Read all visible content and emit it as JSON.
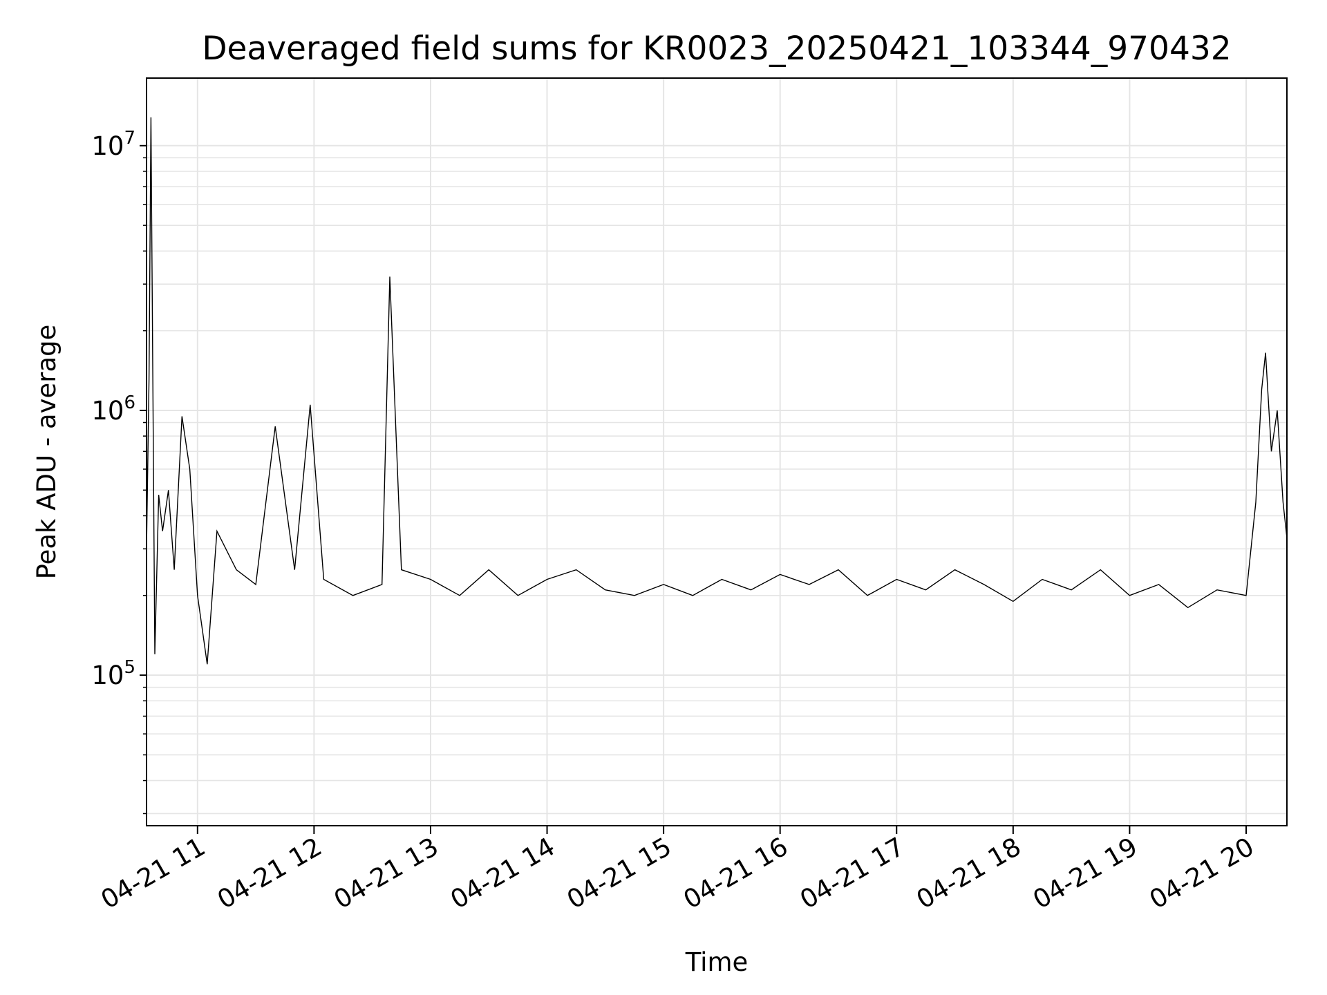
{
  "chart_data": {
    "type": "line",
    "title": "Deaveraged field sums for KR0023_20250421_103344_970432",
    "xlabel": "Time",
    "ylabel": "Peak ADU - average",
    "yscale": "log",
    "ylim": [
      27000,
      18000000
    ],
    "xlim": [
      "2025-04-21 10:33:44",
      "2025-04-21 20:21:00"
    ],
    "grid": true,
    "line_color": "#000000",
    "grid_color": "#e5e5e5",
    "x_ticks": [
      {
        "label": "04-21 11",
        "value": "2025-04-21 11:00"
      },
      {
        "label": "04-21 12",
        "value": "2025-04-21 12:00"
      },
      {
        "label": "04-21 13",
        "value": "2025-04-21 13:00"
      },
      {
        "label": "04-21 14",
        "value": "2025-04-21 14:00"
      },
      {
        "label": "04-21 15",
        "value": "2025-04-21 15:00"
      },
      {
        "label": "04-21 16",
        "value": "2025-04-21 16:00"
      },
      {
        "label": "04-21 17",
        "value": "2025-04-21 17:00"
      },
      {
        "label": "04-21 18",
        "value": "2025-04-21 18:00"
      },
      {
        "label": "04-21 19",
        "value": "2025-04-21 19:00"
      },
      {
        "label": "04-21 20",
        "value": "2025-04-21 20:00"
      }
    ],
    "y_ticks": [
      {
        "base": "10",
        "exp": "5",
        "value": 100000
      },
      {
        "base": "10",
        "exp": "6",
        "value": 1000000
      },
      {
        "base": "10",
        "exp": "7",
        "value": 10000000
      }
    ],
    "series": [
      {
        "x": [
          "2025-04-21 10:33:44",
          "2025-04-21 10:35",
          "2025-04-21 10:36",
          "2025-04-21 10:38",
          "2025-04-21 10:40",
          "2025-04-21 10:42",
          "2025-04-21 10:45",
          "2025-04-21 10:48",
          "2025-04-21 10:52",
          "2025-04-21 10:56",
          "2025-04-21 11:00",
          "2025-04-21 11:05",
          "2025-04-21 11:10",
          "2025-04-21 11:20",
          "2025-04-21 11:30",
          "2025-04-21 11:40",
          "2025-04-21 11:50",
          "2025-04-21 11:58",
          "2025-04-21 12:05",
          "2025-04-21 12:20",
          "2025-04-21 12:35",
          "2025-04-21 12:39",
          "2025-04-21 12:45",
          "2025-04-21 13:00",
          "2025-04-21 13:15",
          "2025-04-21 13:30",
          "2025-04-21 13:45",
          "2025-04-21 14:00",
          "2025-04-21 14:15",
          "2025-04-21 14:30",
          "2025-04-21 14:45",
          "2025-04-21 15:00",
          "2025-04-21 15:15",
          "2025-04-21 15:30",
          "2025-04-21 15:45",
          "2025-04-21 16:00",
          "2025-04-21 16:15",
          "2025-04-21 16:30",
          "2025-04-21 16:45",
          "2025-04-21 17:00",
          "2025-04-21 17:15",
          "2025-04-21 17:30",
          "2025-04-21 17:45",
          "2025-04-21 18:00",
          "2025-04-21 18:15",
          "2025-04-21 18:30",
          "2025-04-21 18:45",
          "2025-04-21 19:00",
          "2025-04-21 19:15",
          "2025-04-21 19:30",
          "2025-04-21 19:45",
          "2025-04-21 20:00",
          "2025-04-21 20:05",
          "2025-04-21 20:08",
          "2025-04-21 20:10",
          "2025-04-21 20:13",
          "2025-04-21 20:16",
          "2025-04-21 20:19",
          "2025-04-21 20:21"
        ],
        "y": [
          300000,
          1300000,
          12800000,
          120000,
          480000,
          350000,
          500000,
          250000,
          950000,
          600000,
          200000,
          110000,
          350000,
          250000,
          220000,
          870000,
          250000,
          1050000,
          230000,
          200000,
          220000,
          3200000,
          250000,
          230000,
          200000,
          250000,
          200000,
          230000,
          250000,
          210000,
          200000,
          220000,
          200000,
          230000,
          210000,
          240000,
          220000,
          250000,
          200000,
          230000,
          210000,
          250000,
          220000,
          190000,
          230000,
          210000,
          250000,
          200000,
          220000,
          180000,
          210000,
          200000,
          450000,
          1200000,
          1650000,
          700000,
          1000000,
          450000,
          330000
        ]
      }
    ]
  }
}
